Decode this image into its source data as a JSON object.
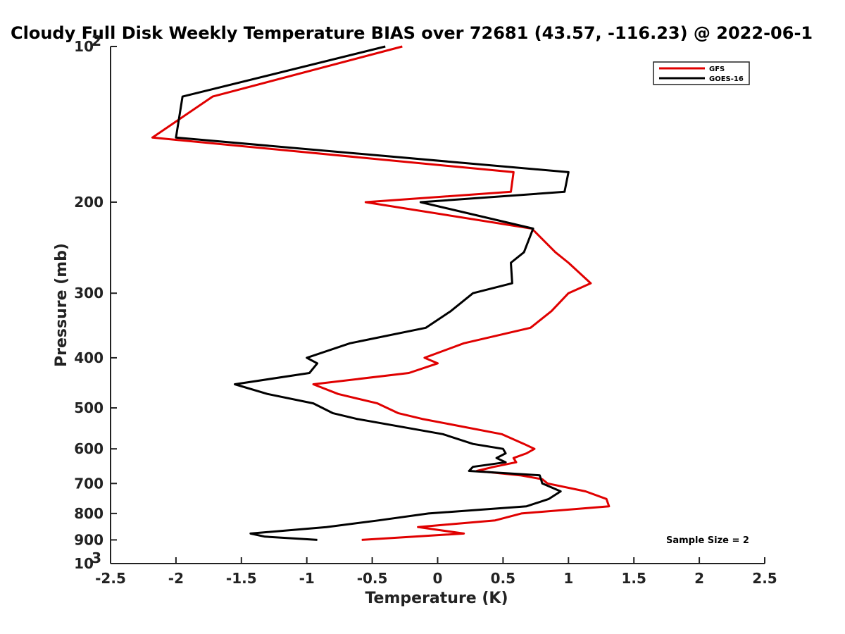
{
  "chart_data": {
    "type": "line",
    "title": "Cloudy Full Disk Weekly Temperature BIAS over 72681 (43.57, -116.23) @ 2022-06-1",
    "xlabel": "Temperature (K)",
    "ylabel": "Pressure (mb)",
    "xlim": [
      -2.5,
      2.5
    ],
    "ylim": [
      100,
      1000
    ],
    "y_scale": "log",
    "y_inverted": true,
    "x_ticks": [
      -2.5,
      -2,
      -1.5,
      -1,
      -0.5,
      0,
      0.5,
      1,
      1.5,
      2,
      2.5
    ],
    "x_tick_labels": [
      "-2.5",
      "-2",
      "-1.5",
      "-1",
      "-0.5",
      "0",
      "0.5",
      "1",
      "1.5",
      "2",
      "2.5"
    ],
    "y_ticks": [
      200,
      300,
      400,
      500,
      600,
      700,
      800,
      900
    ],
    "y_tick_labels": [
      "200",
      "300",
      "400",
      "500",
      "600",
      "700",
      "800",
      "900"
    ],
    "y_end_labels": {
      "top_base": "10",
      "top_exp": "2",
      "bottom_base": "10",
      "bottom_exp": "3"
    },
    "grid": false,
    "legend_position": "top-right",
    "annotation": "Sample Size = 2",
    "series": [
      {
        "name": "GFS",
        "color": "#e00000",
        "points": [
          [
            -0.27,
            100
          ],
          [
            -1.72,
            125
          ],
          [
            -2.18,
            150
          ],
          [
            0.58,
            175
          ],
          [
            0.56,
            191
          ],
          [
            -0.55,
            200
          ],
          [
            0.72,
            225
          ],
          [
            0.9,
            250
          ],
          [
            1.0,
            262
          ],
          [
            1.17,
            287
          ],
          [
            1.0,
            300
          ],
          [
            0.87,
            325
          ],
          [
            0.71,
            350
          ],
          [
            0.2,
            375
          ],
          [
            -0.1,
            400
          ],
          [
            0.0,
            410
          ],
          [
            -0.22,
            428
          ],
          [
            -0.95,
            450
          ],
          [
            -0.76,
            470
          ],
          [
            -0.46,
            490
          ],
          [
            -0.3,
            512
          ],
          [
            -0.12,
            525
          ],
          [
            0.49,
            562
          ],
          [
            0.66,
            587
          ],
          [
            0.74,
            600
          ],
          [
            0.68,
            612
          ],
          [
            0.58,
            625
          ],
          [
            0.6,
            637
          ],
          [
            0.43,
            650
          ],
          [
            0.3,
            662
          ],
          [
            0.63,
            675
          ],
          [
            0.8,
            687
          ],
          [
            0.84,
            700
          ],
          [
            1.13,
            725
          ],
          [
            1.29,
            750
          ],
          [
            1.31,
            775
          ],
          [
            0.64,
            800
          ],
          [
            0.44,
            825
          ],
          [
            -0.15,
            850
          ],
          [
            0.2,
            875
          ],
          [
            -0.58,
            900
          ]
        ]
      },
      {
        "name": "GOES-16",
        "color": "#000000",
        "points": [
          [
            -0.4,
            100
          ],
          [
            -1.95,
            125
          ],
          [
            -2.0,
            150
          ],
          [
            1.0,
            175
          ],
          [
            0.97,
            191
          ],
          [
            -0.13,
            200
          ],
          [
            0.73,
            225
          ],
          [
            0.66,
            250
          ],
          [
            0.56,
            262
          ],
          [
            0.57,
            287
          ],
          [
            0.27,
            300
          ],
          [
            0.1,
            325
          ],
          [
            -0.09,
            350
          ],
          [
            -0.67,
            375
          ],
          [
            -1.0,
            400
          ],
          [
            -0.92,
            410
          ],
          [
            -0.98,
            428
          ],
          [
            -1.55,
            450
          ],
          [
            -1.3,
            470
          ],
          [
            -0.95,
            490
          ],
          [
            -0.8,
            512
          ],
          [
            -0.62,
            525
          ],
          [
            0.04,
            562
          ],
          [
            0.27,
            587
          ],
          [
            0.5,
            600
          ],
          [
            0.52,
            612
          ],
          [
            0.45,
            625
          ],
          [
            0.52,
            637
          ],
          [
            0.27,
            650
          ],
          [
            0.24,
            662
          ],
          [
            0.78,
            675
          ],
          [
            0.79,
            687
          ],
          [
            0.8,
            700
          ],
          [
            0.94,
            725
          ],
          [
            0.85,
            750
          ],
          [
            0.68,
            775
          ],
          [
            -0.07,
            800
          ],
          [
            -0.45,
            825
          ],
          [
            -0.85,
            850
          ],
          [
            -1.43,
            875
          ],
          [
            -1.32,
            887
          ],
          [
            -0.92,
            900
          ]
        ]
      }
    ]
  }
}
